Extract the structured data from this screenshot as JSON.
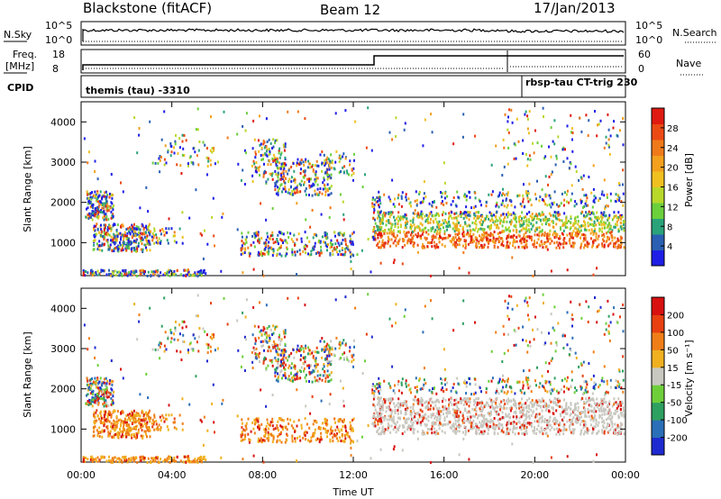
{
  "header": {
    "title": "Blackstone (fitACF)",
    "beam": "Beam 12",
    "date": "17/Jan/2013"
  },
  "top_panels": {
    "nsky_label": "N.Sky",
    "nsky_ticks": [
      "10^5",
      "10^0"
    ],
    "nsearch_label": "N.Search",
    "nsearch_ticks": [
      "10^5",
      "10^0"
    ],
    "freq_label": "Freq.",
    "freq_unit": "[MHz]",
    "freq_ticks": [
      "18",
      "8"
    ],
    "nave_label": "Nave",
    "nave_ticks": [
      "60",
      "0"
    ],
    "cpid_label": "CPID",
    "cpid_segments": [
      {
        "label": "themis (tau) -3310",
        "start_hour": 0.0,
        "end_hour": 18.8
      },
      {
        "label": "rbsp-tau CT-trig 230",
        "start_hour": 18.8,
        "end_hour": 24.0
      }
    ]
  },
  "power_colorbar": {
    "label": "Power [dB]",
    "ticks": [
      "28",
      "24",
      "20",
      "16",
      "12",
      "8",
      "4"
    ],
    "colors": [
      "#1e1ee6",
      "#2a5fb3",
      "#2aa37a",
      "#6ccf3c",
      "#b8d82a",
      "#f0c020",
      "#f2a01e",
      "#f07a1a",
      "#ec4a14",
      "#e01a10"
    ]
  },
  "velocity_colorbar": {
    "label": "Velocity [m s⁻¹]",
    "ticks": [
      "200",
      "100",
      "50",
      "15",
      "-15",
      "-50",
      "-100",
      "-200"
    ],
    "colors": [
      "#1e2ad0",
      "#2a6fb8",
      "#2ea060",
      "#6ecf3a",
      "#c8c8c0",
      "#f0b020",
      "#f07e18",
      "#e84010",
      "#d81010"
    ]
  },
  "chart_data": [
    {
      "type": "heatmap",
      "name": "power",
      "ylabel": "Slant Range [km]",
      "xlabel": "Time UT",
      "x_ticks": [
        "00:00",
        "04:00",
        "08:00",
        "12:00",
        "16:00",
        "20:00",
        "00:00"
      ],
      "xlim": [
        0,
        24
      ],
      "y_ticks": [
        "1000",
        "2000",
        "3000",
        "4000"
      ],
      "ylim": [
        180,
        4500
      ]
    },
    {
      "type": "heatmap",
      "name": "velocity",
      "ylabel": "Slant Range [km]",
      "xlabel": "Time UT",
      "x_ticks": [
        "00:00",
        "04:00",
        "08:00",
        "12:00",
        "16:00",
        "20:00",
        "00:00"
      ],
      "xlim": [
        0,
        24
      ],
      "y_ticks": [
        "1000",
        "2000",
        "3000",
        "4000"
      ],
      "ylim": [
        180,
        4500
      ]
    }
  ]
}
